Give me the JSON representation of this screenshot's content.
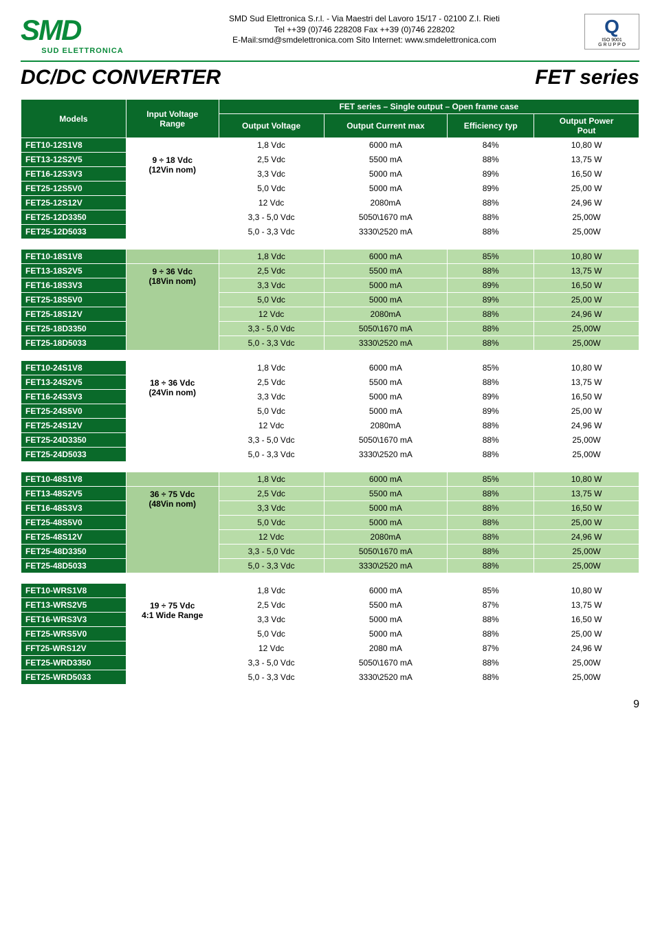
{
  "company": {
    "logo_main": "SMD",
    "logo_sub": "SUD ELETTRONICA",
    "name_line": "SMD Sud Elettronica S.r.l. - Via Maestri del Lavoro 15/17 - 02100 Z.I. Rieti",
    "tel_line": "Tel ++39 (0)746 228208    Fax ++39 (0)746 228202",
    "email_line": "E-Mail:smd@smdelettronica.com    Sito Internet: www.smdelettronica.com",
    "cert_top": "ISO 9001",
    "cert_bottom": "G R U P P O"
  },
  "page": {
    "title_left": "DC/DC CONVERTER",
    "title_right": "FET series",
    "caption": "FET  series – Single output – Open frame case",
    "page_num": "9"
  },
  "columns": [
    "Models",
    "Input Voltage Range",
    "Output Voltage",
    "Output Current max",
    "Efficiency typ",
    "Output Power Pout"
  ],
  "col_widths": [
    "17%",
    "15%",
    "17%",
    "20%",
    "14%",
    "17%"
  ],
  "groups": [
    {
      "range_text": "9 ÷ 18 Vdc\n(12Vin nom)",
      "range_span_from": 1,
      "dark": false,
      "rows": [
        [
          "FET10-12S1V8",
          "1,8 Vdc",
          "6000 mA",
          "84%",
          "10,80 W"
        ],
        [
          "FET13-12S2V5",
          "2,5 Vdc",
          "5500 mA",
          "88%",
          "13,75 W"
        ],
        [
          "FET16-12S3V3",
          "3,3 Vdc",
          "5000 mA",
          "89%",
          "16,50 W"
        ],
        [
          "FET25-12S5V0",
          "5,0 Vdc",
          "5000 mA",
          "89%",
          "25,00 W"
        ],
        [
          "FET25-12S12V",
          "12 Vdc",
          "2080mA",
          "88%",
          "24,96 W"
        ],
        [
          "FET25-12D3350",
          "3,3 - 5,0 Vdc",
          "5050\\1670 mA",
          "88%",
          "25,00W"
        ],
        [
          "FET25-12D5033",
          "5,0 - 3,3 Vdc",
          "3330\\2520 mA",
          "88%",
          "25,00W"
        ]
      ]
    },
    {
      "range_text": "9 ÷ 36 Vdc\n(18Vin nom)",
      "range_span_from": 1,
      "dark": true,
      "rows": [
        [
          "FET10-18S1V8",
          "1,8 Vdc",
          "6000 mA",
          "85%",
          "10,80 W"
        ],
        [
          "FET13-18S2V5",
          "2,5 Vdc",
          "5500 mA",
          "88%",
          "13,75 W"
        ],
        [
          "FET16-18S3V3",
          "3,3 Vdc",
          "5000 mA",
          "89%",
          "16,50 W"
        ],
        [
          "FET25-18S5V0",
          "5,0 Vdc",
          "5000 mA",
          "89%",
          "25,00 W"
        ],
        [
          "FET25-18S12V",
          "12 Vdc",
          "2080mA",
          "88%",
          "24,96 W"
        ],
        [
          "FET25-18D3350",
          "3,3 - 5,0 Vdc",
          "5050\\1670 mA",
          "88%",
          "25,00W"
        ],
        [
          "FET25-18D5033",
          "5,0 - 3,3 Vdc",
          "3330\\2520 mA",
          "88%",
          "25,00W"
        ]
      ]
    },
    {
      "range_text": "18 ÷ 36 Vdc\n(24Vin nom)",
      "range_span_from": 1,
      "dark": false,
      "rows": [
        [
          "FET10-24S1V8",
          "1,8 Vdc",
          "6000 mA",
          "85%",
          "10,80 W"
        ],
        [
          "FET13-24S2V5",
          "2,5 Vdc",
          "5500 mA",
          "88%",
          "13,75 W"
        ],
        [
          "FET16-24S3V3",
          "3,3 Vdc",
          "5000 mA",
          "89%",
          "16,50 W"
        ],
        [
          "FET25-24S5V0",
          "5,0 Vdc",
          "5000 mA",
          "89%",
          "25,00 W"
        ],
        [
          "FET25-24S12V",
          "12 Vdc",
          "2080mA",
          "88%",
          "24,96 W"
        ],
        [
          "FET25-24D3350",
          "3,3 - 5,0 Vdc",
          "5050\\1670 mA",
          "88%",
          "25,00W"
        ],
        [
          "FET25-24D5033",
          "5,0 - 3,3 Vdc",
          "3330\\2520 mA",
          "88%",
          "25,00W"
        ]
      ]
    },
    {
      "range_text": "36 ÷ 75 Vdc\n(48Vin nom)",
      "range_span_from": 1,
      "dark": true,
      "rows": [
        [
          "FET10-48S1V8",
          "1,8 Vdc",
          "6000 mA",
          "85%",
          "10,80 W"
        ],
        [
          "FET13-48S2V5",
          "2,5 Vdc",
          "5500 mA",
          "88%",
          "13,75 W"
        ],
        [
          "FET16-48S3V3",
          "3,3 Vdc",
          "5000 mA",
          "88%",
          "16,50 W"
        ],
        [
          "FET25-48S5V0",
          "5,0 Vdc",
          "5000 mA",
          "88%",
          "25,00 W"
        ],
        [
          "FET25-48S12V",
          "12 Vdc",
          "2080mA",
          "88%",
          "24,96 W"
        ],
        [
          "FET25-48D3350",
          "3,3 - 5,0 Vdc",
          "5050\\1670 mA",
          "88%",
          "25,00W"
        ],
        [
          "FET25-48D5033",
          "5,0 - 3,3 Vdc",
          "3330\\2520 mA",
          "88%",
          "25,00W"
        ]
      ]
    },
    {
      "range_text": "19 ÷ 75 Vdc\n4:1 Wide Range",
      "range_span_from": 1,
      "dark": false,
      "rows": [
        [
          "FET10-WRS1V8",
          "1,8 Vdc",
          "6000 mA",
          "85%",
          "10,80 W"
        ],
        [
          "FET13-WRS2V5",
          "2,5 Vdc",
          "5500 mA",
          "87%",
          "13,75 W"
        ],
        [
          "FET16-WRS3V3",
          "3,3 Vdc",
          "5000 mA",
          "88%",
          "16,50 W"
        ],
        [
          "FET25-WRS5V0",
          "5,0 Vdc",
          "5000 mA",
          "88%",
          "25,00 W"
        ],
        [
          "FFT25-WRS12V",
          "12 Vdc",
          "2080 mA",
          "87%",
          "24,96 W"
        ],
        [
          "FET25-WRD3350",
          "3,3 - 5,0 Vdc",
          "5050\\1670 mA",
          "88%",
          "25,00W"
        ],
        [
          "FET25-WRD5033",
          "5,0 - 3,3 Vdc",
          "3330\\2520 mA",
          "88%",
          "25,00W"
        ]
      ]
    }
  ],
  "colors": {
    "header_bg": "#0a6a2a",
    "header_fg": "#ffffff",
    "model_bg": "#0a6a2a",
    "model_fg": "#ffffff",
    "dark_cell_bg": "#b8dca8",
    "dark_range_bg": "#a8d098",
    "border": "#ffffff",
    "logo_color": "#0a8a3a"
  }
}
